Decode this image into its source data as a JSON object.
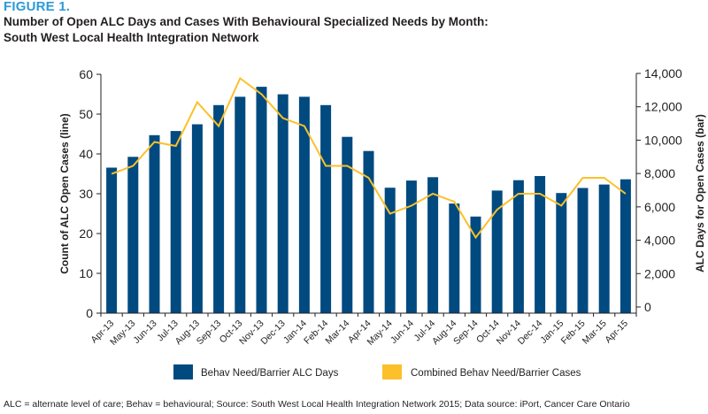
{
  "figure_label": "FIGURE 1.",
  "title_line1": "Number of Open ALC Days and Cases With Behavioural Specialized Needs by Month:",
  "title_line2": "South West Local Health Integration Network",
  "footnote": "ALC = alternate level of care; Behav = behavioural; Source: South West Local Health Integration Network 2015; Data source: iPort, Cancer Care Ontario",
  "colors": {
    "bar": "#004a80",
    "line": "#fcc02a",
    "figure_label": "#2d9ad6"
  },
  "chart_data": {
    "type": "bar",
    "categories": [
      "Apr-13",
      "May-13",
      "Jun-13",
      "Jul-13",
      "Aug-13",
      "Sep-13",
      "Oct-13",
      "Nov-13",
      "Dec-13",
      "Jan-14",
      "Feb-14",
      "Mar-14",
      "Apr-14",
      "May-14",
      "Jun-14",
      "Jul-14",
      "Aug-14",
      "Sep-14",
      "Oct-14",
      "Nov-14",
      "Dec-14",
      "Jan-15",
      "Feb-15",
      "Mar-15",
      "Apr-15"
    ],
    "left_axis": {
      "label": "Count of ALC Open Cases (line)",
      "ylim": [
        0,
        60
      ],
      "ticks": [
        "0",
        "10",
        "20",
        "30",
        "40",
        "50",
        "60"
      ]
    },
    "right_axis": {
      "label": "ALC Days for Open Cases (bar)",
      "ylim": [
        0,
        14000
      ],
      "ticks": [
        "0",
        "2,000",
        "4,000",
        "6,000",
        "8,000",
        "10,000",
        "12,000",
        "14,000"
      ]
    },
    "series": [
      {
        "name": "Behav Need/Barrier ALC Days",
        "type": "bar",
        "axis": "right",
        "values": [
          8350,
          9000,
          10300,
          10550,
          10950,
          12100,
          12600,
          13200,
          12750,
          12600,
          12100,
          10200,
          9350,
          7150,
          7580,
          7780,
          6200,
          5420,
          6980,
          7600,
          7850,
          6830,
          7130,
          7340,
          7650
        ]
      },
      {
        "name": "Combined Behav Need/Barrier Cases",
        "type": "line",
        "axis": "left",
        "values": [
          35,
          37,
          43,
          42,
          53,
          47,
          59,
          55,
          49,
          47,
          37,
          37,
          34,
          25,
          27,
          30,
          28,
          19,
          26,
          30,
          30,
          27,
          34,
          34,
          30
        ]
      }
    ],
    "legend_position": "bottom",
    "grid": false
  }
}
